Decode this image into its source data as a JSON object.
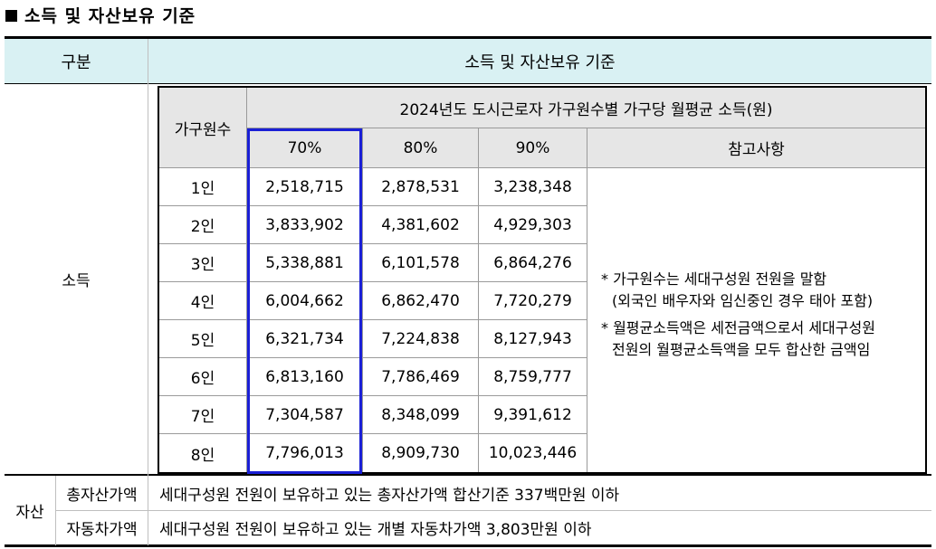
{
  "heading": "소득 및 자산보유 기준",
  "table": {
    "col_header_category": "구분",
    "col_header_criteria": "소득 및 자산보유 기준",
    "income": {
      "row_label": "소득",
      "household_size_header": "가구원수",
      "income_header": "2024년도 도시근로자 가구원수별 가구당 월평균 소득(원)",
      "pct_headers": [
        "70%",
        "80%",
        "90%"
      ],
      "notes_header": "참고사항",
      "rows": [
        {
          "size": "1인",
          "p70": "2,518,715",
          "p80": "2,878,531",
          "p90": "3,238,348"
        },
        {
          "size": "2인",
          "p70": "3,833,902",
          "p80": "4,381,602",
          "p90": "4,929,303"
        },
        {
          "size": "3인",
          "p70": "5,338,881",
          "p80": "6,101,578",
          "p90": "6,864,276"
        },
        {
          "size": "4인",
          "p70": "6,004,662",
          "p80": "6,862,470",
          "p90": "7,720,279"
        },
        {
          "size": "5인",
          "p70": "6,321,734",
          "p80": "7,224,838",
          "p90": "8,127,943"
        },
        {
          "size": "6인",
          "p70": "6,813,160",
          "p80": "7,786,469",
          "p90": "8,759,777"
        },
        {
          "size": "7인",
          "p70": "7,304,587",
          "p80": "8,348,099",
          "p90": "9,391,612"
        },
        {
          "size": "8인",
          "p70": "7,796,013",
          "p80": "8,909,730",
          "p90": "10,023,446"
        }
      ],
      "notes": {
        "note1_line1": "* 가구원수는 세대구성원 전원을 말함",
        "note1_line2": "(외국인 배우자와 임신중인 경우 태아 포함)",
        "note2_line1": "* 월평균소득액은 세전금액으로서 세대구성원",
        "note2_line2": "전원의 월평균소득액을 모두 합산한 금액임"
      }
    },
    "assets": {
      "row_label": "자산",
      "total_assets_label": "총자산가액",
      "total_assets_value": "세대구성원 전원이 보유하고 있는 총자산가액 합산기준 337백만원 이하",
      "vehicle_label": "자동차가액",
      "vehicle_value": "세대구성원 전원이 보유하고 있는 개별 자동차가액 3,803만원 이하"
    }
  },
  "colors": {
    "header_bg": "#d9f1f3",
    "inner_header_bg": "#e6e6e6",
    "highlight_border": "#1a1fd6"
  }
}
